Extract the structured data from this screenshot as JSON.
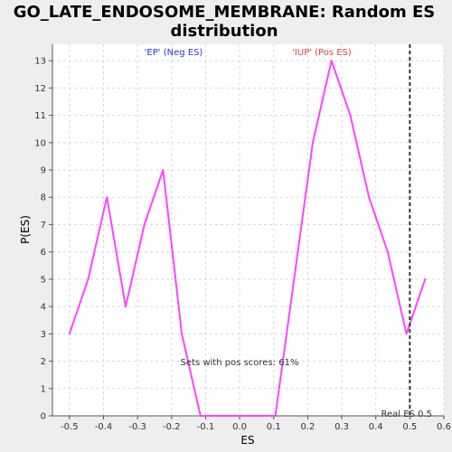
{
  "chart_data": {
    "type": "line",
    "title_line1": "GO_LATE_ENDOSOME_MEMBRANE: Random ES",
    "title_line2": "distribution",
    "xlabel": "ES",
    "ylabel": "P(ES)",
    "xlim": [
      -0.55,
      0.6
    ],
    "ylim": [
      0,
      13.6
    ],
    "xticks": [
      -0.5,
      -0.4,
      -0.3,
      -0.2,
      -0.1,
      0.0,
      0.1,
      0.2,
      0.3,
      0.4,
      0.5,
      0.6
    ],
    "xtick_labels": [
      "-0.5",
      "-0.4",
      "-0.3",
      "-0.2",
      "-0.1",
      "0.0",
      "0.1",
      "0.2",
      "0.3",
      "0.4",
      "0.5",
      "0.6"
    ],
    "yticks": [
      0,
      1,
      2,
      3,
      4,
      5,
      6,
      7,
      8,
      9,
      10,
      11,
      12,
      13
    ],
    "ytick_labels": [
      "0",
      "1",
      "2",
      "3",
      "4",
      "5",
      "6",
      "7",
      "8",
      "9",
      "10",
      "11",
      "12",
      "13"
    ],
    "grid": true,
    "series": [
      {
        "color": "#ff44ff",
        "x": [
          -0.5,
          -0.445,
          -0.39,
          -0.335,
          -0.28,
          -0.225,
          -0.17,
          -0.115,
          -0.06,
          -0.005,
          0.05,
          0.105,
          0.16,
          0.215,
          0.27,
          0.325,
          0.38,
          0.435,
          0.49,
          0.545
        ],
        "y": [
          3,
          5,
          8,
          4,
          7,
          9,
          3,
          0,
          0,
          0,
          0,
          0,
          5,
          10,
          13,
          11,
          8,
          6,
          3,
          5
        ]
      }
    ],
    "marker_line": {
      "x": 0.5,
      "label": "Real ES 0.5",
      "color": "#333333"
    },
    "annotations": {
      "neg_label": "'EP' (Neg ES)",
      "neg_color": "#3333cc",
      "pos_label": "'IUP' (Pos ES)",
      "pos_color": "#dd4444",
      "pos_scores_text": "Sets with pos scores: 61%"
    }
  }
}
